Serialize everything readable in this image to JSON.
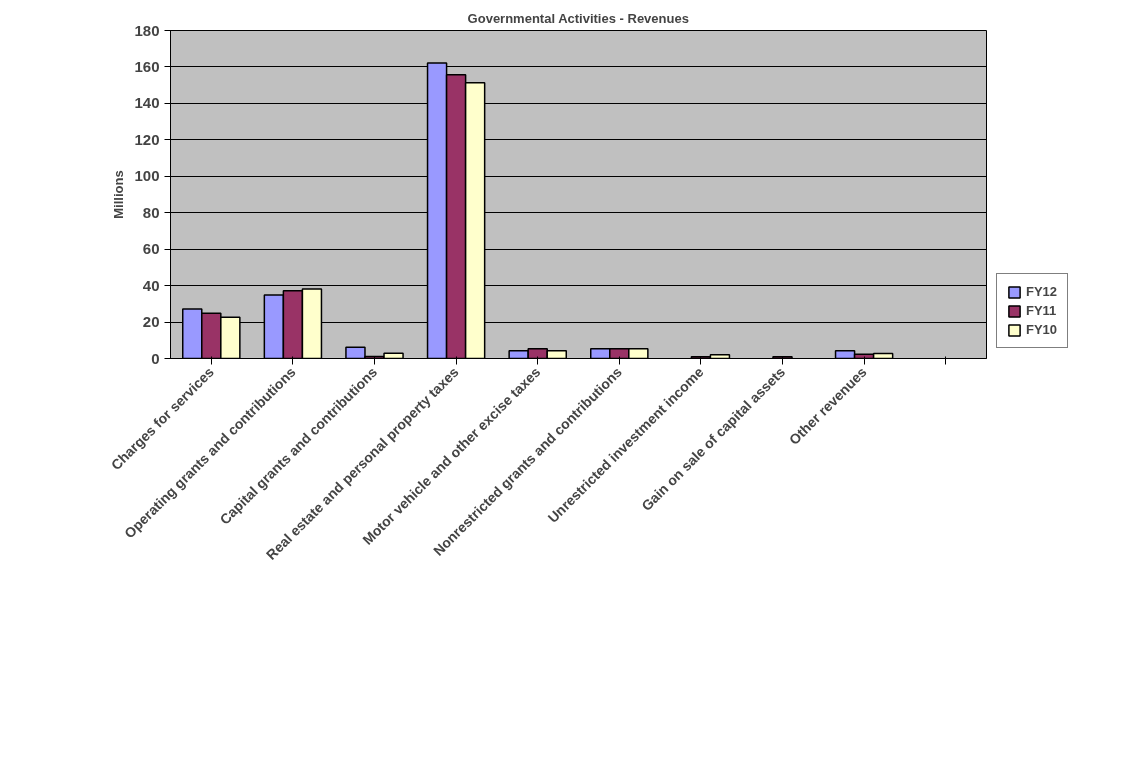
{
  "chart_data": {
    "type": "bar",
    "title": "Governmental Activities - Revenues",
    "ylabel": "Millions",
    "categories": [
      "Charges for services",
      "Operating grants and contributions",
      "Capital grants and contributions",
      "Real estate and personal property taxes",
      "Motor vehicle and other excise taxes",
      "Nonrestricted grants and contributions",
      "Unrestricted investment income",
      "Gain on sale of capital assets",
      "Other revenues",
      null
    ],
    "series": [
      {
        "name": "FY12",
        "color": "#9999ff",
        "values": [
          27.1,
          34.8,
          6.2,
          162.1,
          4.2,
          5.3,
          null,
          null,
          4.2,
          null
        ]
      },
      {
        "name": "FY11",
        "color": "#993366",
        "values": [
          24.9,
          37.2,
          1.1,
          155.7,
          5.3,
          5.3,
          0.9,
          0.9,
          2.4,
          null
        ]
      },
      {
        "name": "FY10",
        "color": "#ffffcc",
        "values": [
          22.7,
          38.1,
          2.9,
          151.3,
          4.2,
          5.3,
          2.0,
          null,
          2.7,
          null
        ]
      }
    ],
    "ylim": [
      0,
      180
    ],
    "yticks": [
      0,
      20,
      40,
      60,
      80,
      100,
      120,
      140,
      160,
      180
    ],
    "grid": "y",
    "legend": "right"
  }
}
